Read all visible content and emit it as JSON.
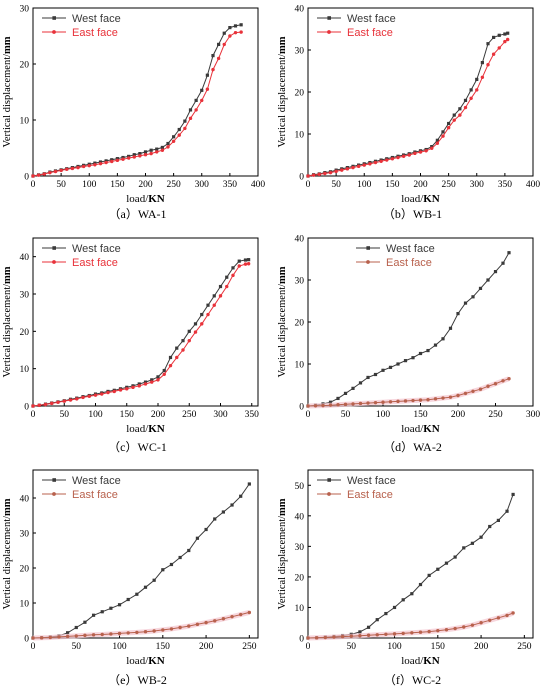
{
  "colors": {
    "west": "#3a3a3a",
    "east": "#e8323a",
    "east_muted": "#b8614d"
  },
  "chart_data": [
    {
      "type": "line",
      "caption": "（a）WA-1",
      "xlabel_prefix": "load/",
      "xlabel_bold": "KN",
      "ylabel_prefix": "Vertical displacement/",
      "ylabel_bold": "mm",
      "xlim": [
        0,
        400
      ],
      "ylim": [
        0,
        30
      ],
      "xticks": [
        0,
        50,
        100,
        150,
        200,
        250,
        300,
        350,
        400
      ],
      "yticks": [
        0,
        10,
        20,
        30
      ],
      "legend": "top-left",
      "east_style": "red",
      "series": [
        {
          "name": "West face",
          "key": "west",
          "x": [
            0,
            10,
            20,
            30,
            40,
            50,
            60,
            70,
            80,
            90,
            100,
            110,
            120,
            130,
            140,
            150,
            160,
            170,
            180,
            190,
            200,
            210,
            220,
            230,
            240,
            250,
            260,
            270,
            280,
            290,
            300,
            310,
            320,
            330,
            340,
            350,
            360,
            370
          ],
          "y": [
            0,
            0.2,
            0.4,
            0.7,
            0.9,
            1.1,
            1.3,
            1.5,
            1.7,
            1.9,
            2.1,
            2.3,
            2.5,
            2.7,
            2.9,
            3.1,
            3.3,
            3.5,
            3.8,
            4.0,
            4.3,
            4.6,
            4.8,
            5.1,
            5.8,
            7.0,
            8.3,
            9.8,
            11.8,
            13.5,
            15.3,
            18.0,
            21.5,
            23.5,
            25.5,
            26.5,
            26.8,
            27.0
          ]
        },
        {
          "name": "East face",
          "key": "east",
          "x": [
            0,
            10,
            20,
            30,
            40,
            50,
            60,
            70,
            80,
            90,
            100,
            110,
            120,
            130,
            140,
            150,
            160,
            170,
            180,
            190,
            200,
            210,
            220,
            230,
            240,
            250,
            260,
            270,
            280,
            290,
            300,
            310,
            320,
            330,
            340,
            350,
            360,
            370
          ],
          "y": [
            0,
            0.15,
            0.35,
            0.6,
            0.8,
            1.0,
            1.2,
            1.35,
            1.5,
            1.7,
            1.85,
            2.0,
            2.2,
            2.4,
            2.6,
            2.8,
            3.0,
            3.2,
            3.4,
            3.6,
            3.8,
            4.0,
            4.3,
            4.6,
            5.2,
            6.2,
            7.3,
            8.5,
            10.3,
            11.8,
            13.5,
            15.5,
            19.0,
            21.0,
            23.5,
            25.0,
            25.6,
            25.7
          ]
        }
      ]
    },
    {
      "type": "line",
      "caption": "（b）WB-1",
      "xlabel_prefix": "load/",
      "xlabel_bold": "KN",
      "ylabel_prefix": "Vertical displacement/",
      "ylabel_bold": "mm",
      "xlim": [
        0,
        400
      ],
      "ylim": [
        0,
        40
      ],
      "xticks": [
        0,
        50,
        100,
        150,
        200,
        250,
        300,
        350,
        400
      ],
      "yticks": [
        0,
        10,
        20,
        30,
        40
      ],
      "legend": "top-left",
      "east_style": "red",
      "series": [
        {
          "name": "West face",
          "key": "west",
          "x": [
            0,
            10,
            20,
            30,
            40,
            50,
            60,
            70,
            80,
            90,
            100,
            110,
            120,
            130,
            140,
            150,
            160,
            170,
            180,
            190,
            200,
            210,
            220,
            230,
            240,
            250,
            260,
            270,
            280,
            290,
            300,
            310,
            320,
            330,
            340,
            350,
            355
          ],
          "y": [
            0,
            0.3,
            0.5,
            0.8,
            1.0,
            1.4,
            1.7,
            2.0,
            2.3,
            2.6,
            2.9,
            3.2,
            3.5,
            3.8,
            4.1,
            4.4,
            4.7,
            5.0,
            5.3,
            5.7,
            6.0,
            6.3,
            7.0,
            8.5,
            10.5,
            12.5,
            14.5,
            16.0,
            18.0,
            20.5,
            23.0,
            27.0,
            31.5,
            33.0,
            33.5,
            33.8,
            34.0
          ]
        },
        {
          "name": "East face",
          "key": "east",
          "x": [
            0,
            10,
            20,
            30,
            40,
            50,
            60,
            70,
            80,
            90,
            100,
            110,
            120,
            130,
            140,
            150,
            160,
            170,
            180,
            190,
            200,
            210,
            220,
            230,
            240,
            250,
            260,
            270,
            280,
            290,
            300,
            310,
            320,
            330,
            340,
            350,
            355
          ],
          "y": [
            0,
            0.2,
            0.4,
            0.6,
            0.8,
            1.1,
            1.4,
            1.7,
            2.0,
            2.3,
            2.6,
            2.9,
            3.2,
            3.5,
            3.8,
            4.1,
            4.4,
            4.7,
            5.0,
            5.4,
            5.7,
            6.0,
            6.6,
            7.8,
            9.5,
            11.5,
            13.3,
            14.5,
            16.3,
            18.5,
            20.5,
            23.5,
            26.5,
            29.0,
            30.5,
            32.0,
            32.5
          ]
        }
      ]
    },
    {
      "type": "line",
      "caption": "（c）WC-1",
      "xlabel_prefix": "load/",
      "xlabel_bold": "KN",
      "ylabel_prefix": "Vertical displacement/",
      "ylabel_bold": "mm",
      "xlim": [
        0,
        360
      ],
      "ylim": [
        0,
        45
      ],
      "xticks": [
        0,
        50,
        100,
        150,
        200,
        250,
        300,
        350
      ],
      "yticks": [
        0,
        10,
        20,
        30,
        40
      ],
      "legend": "top-left",
      "east_style": "red",
      "series": [
        {
          "name": "West face",
          "key": "west",
          "x": [
            0,
            10,
            20,
            30,
            40,
            50,
            60,
            70,
            80,
            90,
            100,
            110,
            120,
            130,
            140,
            150,
            160,
            170,
            180,
            190,
            200,
            210,
            220,
            230,
            240,
            250,
            260,
            270,
            280,
            290,
            300,
            310,
            320,
            330,
            340,
            345
          ],
          "y": [
            0,
            0.2,
            0.5,
            0.8,
            1.1,
            1.4,
            1.8,
            2.1,
            2.5,
            2.8,
            3.2,
            3.5,
            3.9,
            4.2,
            4.6,
            5.0,
            5.4,
            5.9,
            6.4,
            7.0,
            7.8,
            9.5,
            13.0,
            15.5,
            17.5,
            20.0,
            22.0,
            24.5,
            27.0,
            29.5,
            32.0,
            34.5,
            37.0,
            38.8,
            39.1,
            39.2
          ]
        },
        {
          "name": "East face",
          "key": "east",
          "x": [
            0,
            10,
            20,
            30,
            40,
            50,
            60,
            70,
            80,
            90,
            100,
            110,
            120,
            130,
            140,
            150,
            160,
            170,
            180,
            190,
            200,
            210,
            220,
            230,
            240,
            250,
            260,
            270,
            280,
            290,
            300,
            310,
            320,
            330,
            340,
            345
          ],
          "y": [
            0,
            0.2,
            0.4,
            0.7,
            1.0,
            1.3,
            1.6,
            1.9,
            2.3,
            2.6,
            2.9,
            3.2,
            3.6,
            3.9,
            4.3,
            4.6,
            5.0,
            5.4,
            5.9,
            6.4,
            7.0,
            8.5,
            10.8,
            13.0,
            15.0,
            17.5,
            19.8,
            22.0,
            24.5,
            27.0,
            29.5,
            32.0,
            35.0,
            37.5,
            38.0,
            38.1
          ]
        }
      ]
    },
    {
      "type": "line",
      "caption": "（d）WA-2",
      "xlabel_prefix": "load/",
      "xlabel_bold": "KN",
      "ylabel_prefix": "Vertical displacement/",
      "ylabel_bold": "mm",
      "xlim": [
        0,
        300
      ],
      "ylim": [
        0,
        40
      ],
      "xticks": [
        0,
        50,
        100,
        150,
        200,
        250,
        300
      ],
      "yticks": [
        0,
        10,
        20,
        30,
        40
      ],
      "legend": "top-right",
      "east_style": "muted",
      "series": [
        {
          "name": "West face",
          "key": "west",
          "x": [
            0,
            10,
            20,
            30,
            40,
            50,
            60,
            70,
            80,
            90,
            100,
            110,
            120,
            130,
            140,
            150,
            160,
            170,
            180,
            190,
            200,
            210,
            220,
            230,
            240,
            250,
            260,
            268
          ],
          "y": [
            0,
            0.2,
            0.5,
            0.9,
            1.8,
            3.0,
            4.2,
            5.5,
            6.8,
            7.5,
            8.5,
            9.2,
            10.0,
            10.8,
            11.5,
            12.5,
            13.2,
            14.5,
            16.0,
            18.5,
            22.0,
            24.5,
            26.0,
            28.0,
            30.0,
            32.0,
            34.0,
            36.5
          ]
        },
        {
          "name": "East face",
          "key": "east",
          "x": [
            0,
            10,
            20,
            30,
            40,
            50,
            60,
            70,
            80,
            90,
            100,
            110,
            120,
            130,
            140,
            150,
            160,
            170,
            180,
            190,
            200,
            210,
            220,
            230,
            240,
            250,
            260,
            268
          ],
          "y": [
            0,
            0.05,
            0.1,
            0.2,
            0.3,
            0.4,
            0.5,
            0.6,
            0.7,
            0.8,
            0.9,
            1.0,
            1.1,
            1.2,
            1.3,
            1.4,
            1.5,
            1.7,
            1.9,
            2.1,
            2.5,
            3.0,
            3.5,
            4.0,
            4.7,
            5.3,
            6.0,
            6.5
          ]
        }
      ]
    },
    {
      "type": "line",
      "caption": "（e）WB-2",
      "xlabel_prefix": "load/",
      "xlabel_bold": "KN",
      "ylabel_prefix": "Vertical displacement/",
      "ylabel_bold": "mm",
      "xlim": [
        0,
        260
      ],
      "ylim": [
        0,
        48
      ],
      "xticks": [
        0,
        50,
        100,
        150,
        200,
        250
      ],
      "yticks": [
        0,
        10,
        20,
        30,
        40
      ],
      "legend": "top-left",
      "east_style": "muted",
      "series": [
        {
          "name": "West face",
          "key": "west",
          "x": [
            0,
            10,
            20,
            30,
            40,
            50,
            60,
            70,
            80,
            90,
            100,
            110,
            120,
            130,
            140,
            150,
            160,
            170,
            180,
            190,
            200,
            210,
            220,
            230,
            240,
            250
          ],
          "y": [
            0,
            0.1,
            0.3,
            0.6,
            1.5,
            3.0,
            4.5,
            6.5,
            7.5,
            8.5,
            9.5,
            11.0,
            12.5,
            14.5,
            16.5,
            19.5,
            21.0,
            23.0,
            25.0,
            28.5,
            31.0,
            34.0,
            36.0,
            38.0,
            40.5,
            44.0
          ]
        },
        {
          "name": "East face",
          "key": "east",
          "x": [
            0,
            10,
            20,
            30,
            40,
            50,
            60,
            70,
            80,
            90,
            100,
            110,
            120,
            130,
            140,
            150,
            160,
            170,
            180,
            190,
            200,
            210,
            220,
            230,
            240,
            250
          ],
          "y": [
            0,
            0.05,
            0.15,
            0.3,
            0.45,
            0.6,
            0.75,
            0.9,
            1.0,
            1.15,
            1.3,
            1.45,
            1.6,
            1.8,
            2.0,
            2.3,
            2.6,
            3.0,
            3.4,
            3.9,
            4.4,
            4.9,
            5.5,
            6.1,
            6.7,
            7.3
          ]
        }
      ]
    },
    {
      "type": "line",
      "caption": "（f）WC-2",
      "xlabel_prefix": "load/",
      "xlabel_bold": "KN",
      "ylabel_prefix": "Vertical displacement/",
      "ylabel_bold": "mm",
      "xlim": [
        0,
        260
      ],
      "ylim": [
        0,
        55
      ],
      "xticks": [
        0,
        50,
        100,
        150,
        200,
        250
      ],
      "yticks": [
        0,
        10,
        20,
        30,
        40,
        50
      ],
      "legend": "top-left",
      "east_style": "muted",
      "series": [
        {
          "name": "West face",
          "key": "west",
          "x": [
            0,
            10,
            20,
            30,
            40,
            50,
            60,
            70,
            80,
            90,
            100,
            110,
            120,
            130,
            140,
            150,
            160,
            170,
            180,
            190,
            200,
            210,
            220,
            230,
            237
          ],
          "y": [
            0,
            0.1,
            0.3,
            0.5,
            0.8,
            1.2,
            2.0,
            3.5,
            6.0,
            8.0,
            10.0,
            12.5,
            14.5,
            17.5,
            20.5,
            22.5,
            24.5,
            26.5,
            29.5,
            31.0,
            33.0,
            36.5,
            38.5,
            41.5,
            47.0
          ]
        },
        {
          "name": "East face",
          "key": "east",
          "x": [
            0,
            10,
            20,
            30,
            40,
            50,
            60,
            70,
            80,
            90,
            100,
            110,
            120,
            130,
            140,
            150,
            160,
            170,
            180,
            190,
            200,
            210,
            220,
            230,
            237
          ],
          "y": [
            0,
            0.05,
            0.15,
            0.3,
            0.45,
            0.6,
            0.75,
            0.9,
            1.05,
            1.2,
            1.35,
            1.5,
            1.7,
            1.9,
            2.1,
            2.4,
            2.7,
            3.1,
            3.6,
            4.2,
            5.0,
            5.8,
            6.6,
            7.4,
            8.2
          ]
        }
      ]
    }
  ]
}
